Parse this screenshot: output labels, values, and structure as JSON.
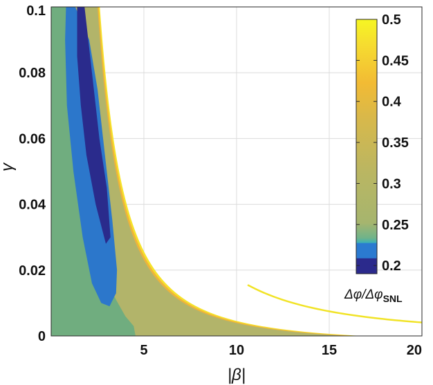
{
  "chart_data": {
    "type": "heatmap",
    "xlabel": "|β|",
    "ylabel": "γ",
    "xlim": [
      0,
      20
    ],
    "ylim": [
      0,
      0.1
    ],
    "x_ticks": [
      "5",
      "10",
      "15",
      "20"
    ],
    "y_ticks": [
      "0",
      "0.02",
      "0.04",
      "0.06",
      "0.08",
      "0.1"
    ],
    "x_tick_values": [
      5,
      10,
      15,
      20
    ],
    "y_tick_values": [
      0,
      0.02,
      0.04,
      0.06,
      0.08,
      0.1
    ],
    "grid": true,
    "colorbar": {
      "label_main": "Δφ/Δφ",
      "label_sub": "SNL",
      "range": [
        0.19,
        0.5
      ],
      "ticks": [
        "0.2",
        "0.25",
        "0.3",
        "0.35",
        "0.4",
        "0.45",
        "0.5"
      ],
      "tick_values": [
        0.2,
        0.25,
        0.3,
        0.35,
        0.4,
        0.45,
        0.5
      ],
      "placement": "top-right inside axes"
    },
    "regions": [
      {
        "value": 0.23,
        "color": "#6fae7e",
        "boundary": "|β| < 4.5 near γ=0, extending to |β| ≈ 0.5 at γ=0.1"
      },
      {
        "value": 0.215,
        "color": "#2a75c9",
        "boundary": "elongated region centred |β| ≈ 2 at γ = 0.01 to 0.1"
      },
      {
        "value": 0.2,
        "color": "#2a2a8e",
        "boundary": "narrow core |β| ≈ 1.5–3, γ = 0.03 to 0.1"
      },
      {
        "value": 0.28,
        "color": "#b3b466",
        "boundary": "band between green region and the cutoff curve"
      },
      {
        "value": 0.45,
        "color": "#f0c030",
        "boundary": "thin edge along cutoff curve"
      },
      {
        "value": 0.5,
        "color": "#f4f020",
        "boundary": "isolated curve from |β| ≈ 10.5, γ ≈ 0.015 to |β| = 20, γ ≈ 0.004"
      }
    ]
  }
}
